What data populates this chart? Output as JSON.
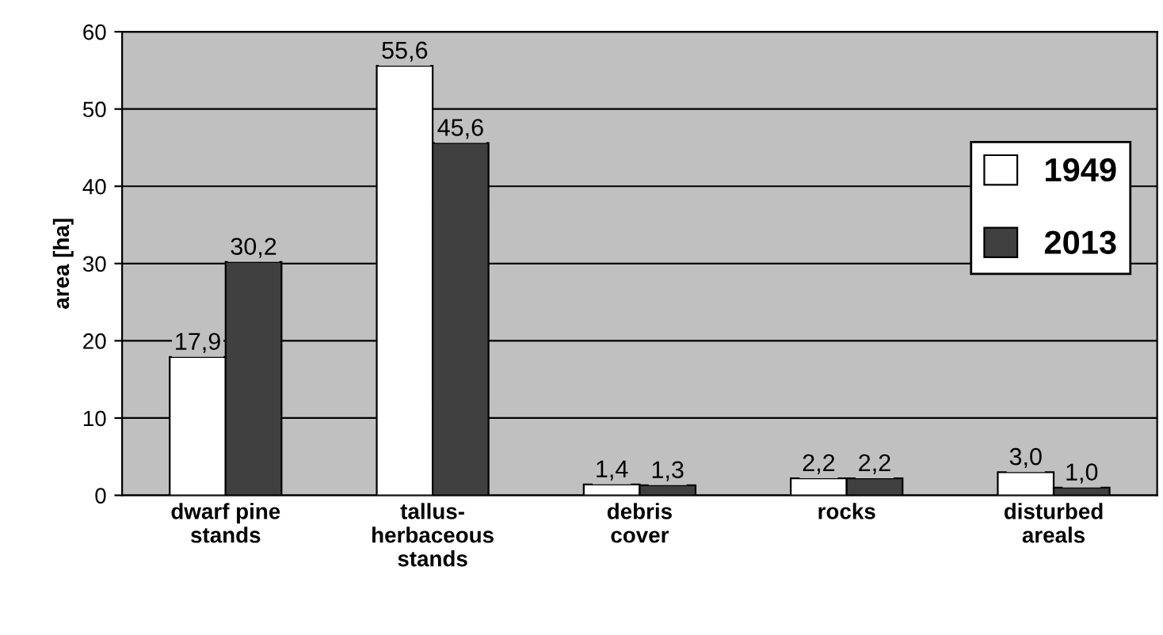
{
  "chart_data": {
    "type": "bar",
    "ylabel": "area [ha]",
    "categories": [
      "dwarf pine\nstands",
      "tallus-\nherbaceous\nstands",
      "debris\ncover",
      "rocks",
      "disturbed\nareals"
    ],
    "series": [
      {
        "name": "1949",
        "color": "#ffffff",
        "values": [
          17.9,
          55.6,
          1.4,
          2.2,
          3.0
        ],
        "value_labels": [
          "17,9",
          "55,6",
          "1,4",
          "2,2",
          "3,0"
        ]
      },
      {
        "name": "2013",
        "color": "#404040",
        "values": [
          30.2,
          45.6,
          1.3,
          2.2,
          1.0
        ],
        "value_labels": [
          "30,2",
          "45,6",
          "1,3",
          "2,2",
          "1,0"
        ]
      }
    ],
    "ylim": [
      0,
      60
    ],
    "yticks": [
      0,
      10,
      20,
      30,
      40,
      50,
      60
    ],
    "grid": "y",
    "legend": "right"
  }
}
